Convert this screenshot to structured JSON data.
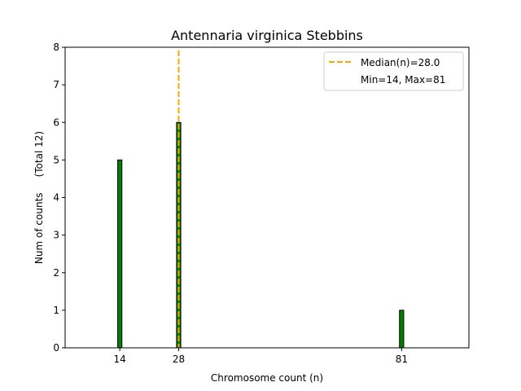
{
  "chart_data": {
    "type": "bar",
    "title": "Antennaria virginica Stebbins",
    "xlabel": "Chromosome count (n)",
    "ylabel": "Num of counts     (Total 12)",
    "x": [
      14,
      28,
      81
    ],
    "values": [
      5,
      6,
      1
    ],
    "xticks": [
      "14",
      "28",
      "81"
    ],
    "yticks": [
      "0",
      "1",
      "2",
      "3",
      "4",
      "5",
      "6",
      "7",
      "8"
    ],
    "xlim": [
      1,
      97
    ],
    "ylim": [
      0,
      8
    ],
    "bar_width": 1,
    "median": 28.0,
    "min": 14,
    "max": 81,
    "legend": {
      "position": "top-right",
      "median_label": "Median(n)=28.0",
      "minmax_label": "Min=14, Max=81"
    },
    "colors": {
      "bar_fill": "#008000",
      "bar_edge": "#000000",
      "median_line": "#FFA500",
      "axis": "#000000"
    }
  }
}
